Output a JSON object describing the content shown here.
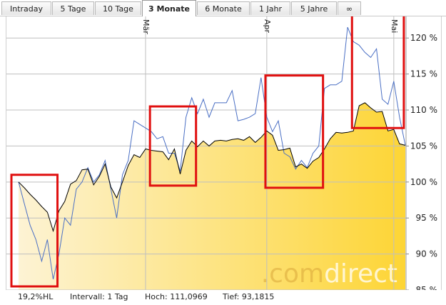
{
  "tabs": [
    {
      "label": "Intraday",
      "active": false
    },
    {
      "label": "5 Tage",
      "active": false
    },
    {
      "label": "10 Tage",
      "active": false
    },
    {
      "label": "3 Monate",
      "active": true
    },
    {
      "label": "6 Monate",
      "active": false
    },
    {
      "label": "1 Jahr",
      "active": false
    },
    {
      "label": "5 Jahre",
      "active": false
    },
    {
      "label": "∞",
      "active": false
    }
  ],
  "footer": {
    "hl": "19,2%HL",
    "interval": "Intervall: 1 Tag",
    "high": "Hoch: 111,0969",
    "low": "Tief: 93,1815"
  },
  "watermark": {
    "part1": ".com",
    "part2": "direct"
  },
  "colors": {
    "area_light": "#fdf3d4",
    "area_dark": "#fdd535",
    "benchmark_line": "#4a6fc4",
    "main_line": "#000000",
    "highlight_box": "#e01010",
    "grid": "#bfbfbf"
  },
  "chart_data": {
    "type": "area",
    "ylim": [
      85,
      123
    ],
    "y_ticks": [
      85,
      90,
      95,
      100,
      105,
      110,
      115,
      120
    ],
    "y_tick_labels": [
      "85 %",
      "90 %",
      "95 %",
      "100 %",
      "105 %",
      "110 %",
      "115 %",
      "120 %"
    ],
    "month_labels": [
      {
        "label": "Mär",
        "index": 22
      },
      {
        "label": "Apr",
        "index": 43
      },
      {
        "label": "Mai",
        "index": 65
      }
    ],
    "n_points": 68,
    "series": [
      {
        "values": [
          100,
          99.2,
          98.3,
          97.5,
          96.6,
          95.8,
          93.2,
          96,
          97.3,
          99.7,
          100.2,
          101.7,
          101.8,
          99.6,
          100.8,
          102.5,
          99.3,
          97.8,
          100,
          102.3,
          103.8,
          103.4,
          104.6,
          104.4,
          104.3,
          104.2,
          103.1,
          104.6,
          101.1,
          104.4,
          105.7,
          104.9,
          105.7,
          105,
          105.7,
          105.8,
          105.7,
          105.9,
          106,
          105.8,
          106.3,
          105.5,
          106.2,
          107.1,
          106.5,
          104.4,
          104.5,
          104.7,
          102.1,
          102.5,
          101.9,
          102.9,
          103.4,
          104.6,
          106,
          106.9,
          106.8,
          106.9,
          107.1,
          110.6,
          111,
          110.3,
          109.7,
          109.8,
          107.1,
          107.3,
          105.3,
          105.1
        ]
      },
      {
        "values": [
          100,
          97,
          94,
          92,
          89,
          92,
          86.5,
          90,
          95,
          94,
          99,
          100,
          102,
          100,
          101,
          103,
          99,
          95,
          101,
          103,
          108.5,
          108,
          107.5,
          107,
          106,
          106.3,
          104,
          104,
          101.5,
          109,
          111.7,
          109.5,
          111.5,
          109,
          111,
          111,
          111,
          112.7,
          108.5,
          108.7,
          109,
          109.5,
          114.5,
          109,
          107,
          108.5,
          104,
          103.5,
          101.8,
          103,
          102,
          104,
          105,
          113,
          113.5,
          113.5,
          114,
          121.5,
          119.5,
          119,
          118,
          117.3,
          118.5,
          111.5,
          110.8,
          114,
          109,
          105.1
        ]
      }
    ],
    "annotations": [
      {
        "type": "box",
        "from_index": 0,
        "to_index": 6,
        "y_from": 85.5,
        "y_to": 101.0
      },
      {
        "type": "box",
        "from_index": 24,
        "to_index": 30,
        "y_from": 99.5,
        "y_to": 110.5
      },
      {
        "type": "box",
        "from_index": 44,
        "to_index": 52,
        "y_from": 99.2,
        "y_to": 114.8
      },
      {
        "type": "box",
        "from_index": 59,
        "to_index": 66,
        "y_from": 107.5,
        "y_to": 124.2
      }
    ]
  }
}
